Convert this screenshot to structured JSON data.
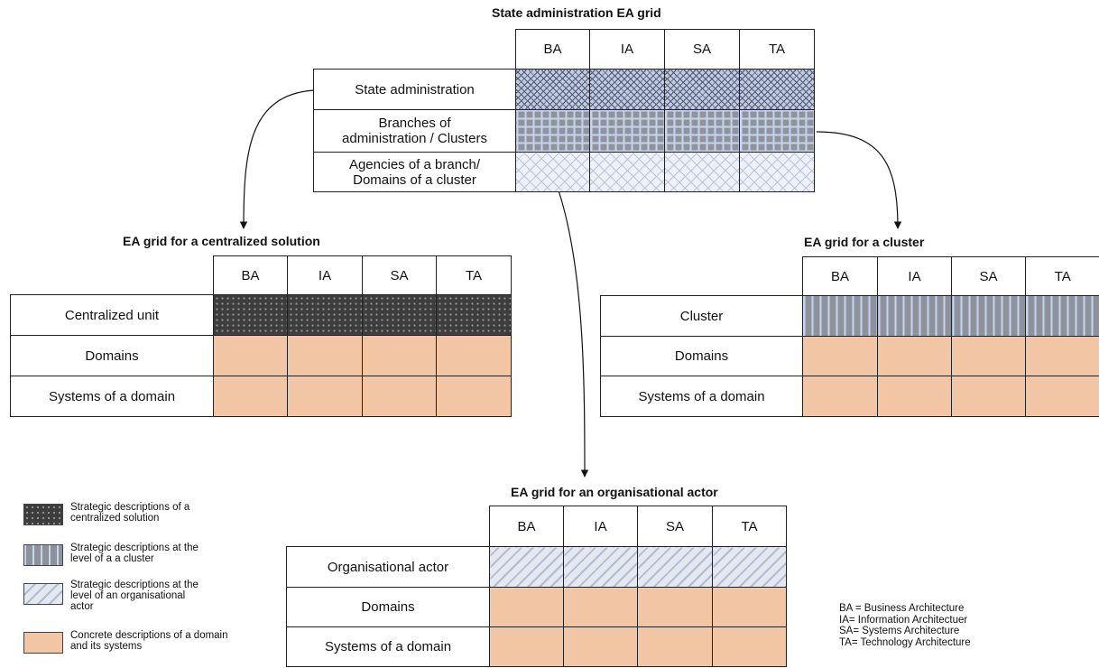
{
  "columns": [
    "BA",
    "IA",
    "SA",
    "TA"
  ],
  "state_grid": {
    "title": "State administration EA grid",
    "rows": [
      {
        "label": "State administration",
        "pattern": "cross"
      },
      {
        "label": "Branches of\nadministration / Clusters",
        "pattern": "grid"
      },
      {
        "label": "Agencies of a branch/\nDomains of a cluster",
        "pattern": "lightcross"
      }
    ]
  },
  "centralized_grid": {
    "title": "EA grid for a centralized solution",
    "rows": [
      {
        "label": "Centralized unit",
        "pattern": "dots"
      },
      {
        "label": "Domains",
        "pattern": "peach"
      },
      {
        "label": "Systems of a domain",
        "pattern": "peach"
      }
    ]
  },
  "cluster_grid": {
    "title": "EA grid for a cluster",
    "rows": [
      {
        "label": "Cluster",
        "pattern": "vstripe"
      },
      {
        "label": "Domains",
        "pattern": "peach"
      },
      {
        "label": "Systems of a domain",
        "pattern": "peach"
      }
    ]
  },
  "actor_grid": {
    "title": "EA grid for an organisational actor",
    "rows": [
      {
        "label": "Organisational actor",
        "pattern": "diag"
      },
      {
        "label": "Domains",
        "pattern": "peach"
      },
      {
        "label": "Systems of a domain",
        "pattern": "peach"
      }
    ]
  },
  "legend": [
    {
      "pattern": "dots",
      "text": "Strategic descriptions of a\ncentralized solution"
    },
    {
      "pattern": "vstripe",
      "text": "Strategic descriptions at the\nlevel of a a cluster"
    },
    {
      "pattern": "diag",
      "text": "Strategic descriptions at the\nlevel of an organisational\nactor"
    },
    {
      "pattern": "peach",
      "text": "Concrete descriptions of a domain\nand its systems"
    }
  ],
  "abbreviations": [
    "BA = Business Architecture",
    "IA= Information Architectuer",
    "SA= Systems Architecture",
    "TA= Technology Architecture"
  ]
}
